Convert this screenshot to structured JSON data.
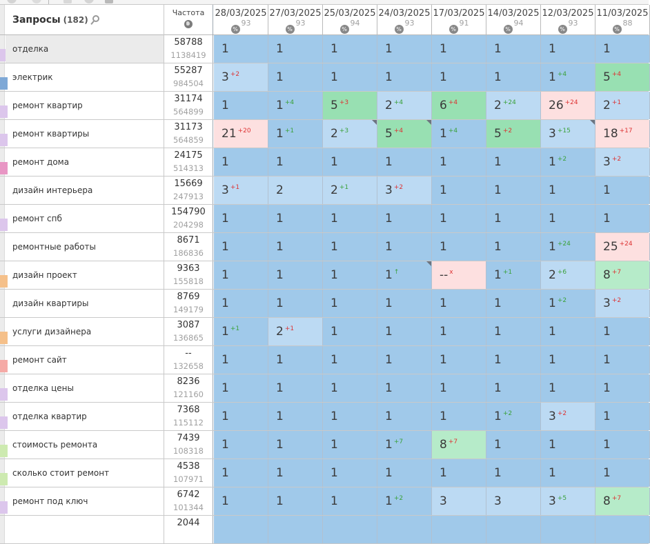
{
  "header": {
    "title": "Запросы",
    "count": "(182)",
    "frequency_label": "Частота",
    "dates": [
      {
        "date": "28/03/2025",
        "visibility": "93"
      },
      {
        "date": "27/03/2025",
        "visibility": "93"
      },
      {
        "date": "25/03/2025",
        "visibility": "94"
      },
      {
        "date": "24/03/2025",
        "visibility": "93"
      },
      {
        "date": "17/03/2025",
        "visibility": "91"
      },
      {
        "date": "14/03/2025",
        "visibility": "94"
      },
      {
        "date": "12/03/2025",
        "visibility": "93"
      },
      {
        "date": "11/03/2025",
        "visibility": "88"
      }
    ]
  },
  "colors": {
    "blue": "#a0c9ea",
    "light": "#bcdaf3",
    "green": "#98e0b2",
    "pink": "#fde0e0",
    "lgreen": "#b6ebc9",
    "swatch_lilac": "#dcc6ec",
    "swatch_blue": "#7ea8d6",
    "swatch_pink": "#e896c4",
    "swatch_orange": "#f5c08a",
    "swatch_coral": "#f5aaa6",
    "swatch_lime": "#cdeab0"
  },
  "rows": [
    {
      "keyword": "отделка",
      "freq": "58788",
      "freq2": "1138419",
      "swatch": "#dcc6ec",
      "alt": true,
      "cells": [
        {
          "v": "1",
          "bg": "blue"
        },
        {
          "v": "1",
          "bg": "blue"
        },
        {
          "v": "1",
          "bg": "blue"
        },
        {
          "v": "1",
          "bg": "blue"
        },
        {
          "v": "1",
          "bg": "blue"
        },
        {
          "v": "1",
          "bg": "blue"
        },
        {
          "v": "1",
          "bg": "blue"
        },
        {
          "v": "1",
          "bg": "blue"
        }
      ]
    },
    {
      "keyword": "электрик",
      "freq": "55287",
      "freq2": "984504",
      "swatch": "#7ea8d6",
      "cells": [
        {
          "v": "3",
          "d": "+2",
          "dir": "dn",
          "bg": "light"
        },
        {
          "v": "1",
          "bg": "blue"
        },
        {
          "v": "1",
          "bg": "blue"
        },
        {
          "v": "1",
          "bg": "blue"
        },
        {
          "v": "1",
          "bg": "blue"
        },
        {
          "v": "1",
          "bg": "blue"
        },
        {
          "v": "1",
          "d": "+4",
          "dir": "up",
          "bg": "blue"
        },
        {
          "v": "5",
          "d": "+4",
          "dir": "dn",
          "bg": "green"
        }
      ]
    },
    {
      "keyword": "ремонт квартир",
      "freq": "31174",
      "freq2": "564899",
      "swatch": "#dcc6ec",
      "cells": [
        {
          "v": "1",
          "bg": "blue"
        },
        {
          "v": "1",
          "d": "+4",
          "dir": "up",
          "bg": "blue"
        },
        {
          "v": "5",
          "d": "+3",
          "dir": "dn",
          "bg": "green"
        },
        {
          "v": "2",
          "d": "+4",
          "dir": "up",
          "bg": "light"
        },
        {
          "v": "6",
          "d": "+4",
          "dir": "dn",
          "bg": "green"
        },
        {
          "v": "2",
          "d": "+24",
          "dir": "up",
          "bg": "light"
        },
        {
          "v": "26",
          "d": "+24",
          "dir": "dn",
          "bg": "pink"
        },
        {
          "v": "2",
          "d": "+1",
          "dir": "dn",
          "bg": "light"
        }
      ]
    },
    {
      "keyword": "ремонт квартиры",
      "freq": "31173",
      "freq2": "564859",
      "swatch": "#dcc6ec",
      "cells": [
        {
          "v": "21",
          "d": "+20",
          "dir": "dn",
          "bg": "pink"
        },
        {
          "v": "1",
          "d": "+1",
          "dir": "up",
          "bg": "blue"
        },
        {
          "v": "2",
          "d": "+3",
          "dir": "up",
          "bg": "light",
          "tri": true
        },
        {
          "v": "5",
          "d": "+4",
          "dir": "dn",
          "bg": "green",
          "tri": true
        },
        {
          "v": "1",
          "d": "+4",
          "dir": "up",
          "bg": "blue"
        },
        {
          "v": "5",
          "d": "+2",
          "dir": "dn",
          "bg": "green"
        },
        {
          "v": "3",
          "d": "+15",
          "dir": "up",
          "bg": "light",
          "tri": true
        },
        {
          "v": "18",
          "d": "+17",
          "dir": "dn",
          "bg": "pink"
        }
      ]
    },
    {
      "keyword": "ремонт дома",
      "freq": "24175",
      "freq2": "514313",
      "swatch": "#e896c4",
      "cells": [
        {
          "v": "1",
          "bg": "blue"
        },
        {
          "v": "1",
          "bg": "blue"
        },
        {
          "v": "1",
          "bg": "blue"
        },
        {
          "v": "1",
          "bg": "blue"
        },
        {
          "v": "1",
          "bg": "blue"
        },
        {
          "v": "1",
          "bg": "blue"
        },
        {
          "v": "1",
          "d": "+2",
          "dir": "up",
          "bg": "blue"
        },
        {
          "v": "3",
          "d": "+2",
          "dir": "dn",
          "bg": "light"
        }
      ]
    },
    {
      "keyword": "дизайн интерьера",
      "freq": "15669",
      "freq2": "247913",
      "swatch": "",
      "cells": [
        {
          "v": "3",
          "d": "+1",
          "dir": "dn",
          "bg": "light"
        },
        {
          "v": "2",
          "bg": "light"
        },
        {
          "v": "2",
          "d": "+1",
          "dir": "up",
          "bg": "light"
        },
        {
          "v": "3",
          "d": "+2",
          "dir": "dn",
          "bg": "light"
        },
        {
          "v": "1",
          "bg": "blue"
        },
        {
          "v": "1",
          "bg": "blue"
        },
        {
          "v": "1",
          "bg": "blue"
        },
        {
          "v": "1",
          "bg": "blue"
        }
      ]
    },
    {
      "keyword": "ремонт спб",
      "freq": "154790",
      "freq2": "204298",
      "swatch": "#dcc6ec",
      "cells": [
        {
          "v": "1",
          "bg": "blue"
        },
        {
          "v": "1",
          "bg": "blue"
        },
        {
          "v": "1",
          "bg": "blue"
        },
        {
          "v": "1",
          "bg": "blue"
        },
        {
          "v": "1",
          "bg": "blue"
        },
        {
          "v": "1",
          "bg": "blue"
        },
        {
          "v": "1",
          "bg": "blue"
        },
        {
          "v": "1",
          "bg": "blue"
        }
      ]
    },
    {
      "keyword": "ремонтные работы",
      "freq": "8671",
      "freq2": "186836",
      "swatch": "",
      "cells": [
        {
          "v": "1",
          "bg": "blue"
        },
        {
          "v": "1",
          "bg": "blue"
        },
        {
          "v": "1",
          "bg": "blue"
        },
        {
          "v": "1",
          "bg": "blue"
        },
        {
          "v": "1",
          "bg": "blue"
        },
        {
          "v": "1",
          "bg": "blue"
        },
        {
          "v": "1",
          "d": "+24",
          "dir": "up",
          "bg": "blue"
        },
        {
          "v": "25",
          "d": "+24",
          "dir": "dn",
          "bg": "pink"
        }
      ]
    },
    {
      "keyword": "дизайн проект",
      "freq": "9363",
      "freq2": "155818",
      "swatch": "#f5c08a",
      "cells": [
        {
          "v": "1",
          "bg": "blue"
        },
        {
          "v": "1",
          "bg": "blue"
        },
        {
          "v": "1",
          "bg": "blue"
        },
        {
          "v": "1",
          "d": "↑",
          "dir": "up",
          "bg": "blue",
          "tri": true
        },
        {
          "v": "--",
          "d": "x",
          "dir": "dn",
          "bg": "pink"
        },
        {
          "v": "1",
          "d": "+1",
          "dir": "up",
          "bg": "blue"
        },
        {
          "v": "2",
          "d": "+6",
          "dir": "up",
          "bg": "light"
        },
        {
          "v": "8",
          "d": "+7",
          "dir": "dn",
          "bg": "lgreen"
        }
      ]
    },
    {
      "keyword": "дизайн квартиры",
      "freq": "8769",
      "freq2": "149179",
      "swatch": "",
      "cells": [
        {
          "v": "1",
          "bg": "blue"
        },
        {
          "v": "1",
          "bg": "blue"
        },
        {
          "v": "1",
          "bg": "blue"
        },
        {
          "v": "1",
          "bg": "blue"
        },
        {
          "v": "1",
          "bg": "blue"
        },
        {
          "v": "1",
          "bg": "blue"
        },
        {
          "v": "1",
          "d": "+2",
          "dir": "up",
          "bg": "blue"
        },
        {
          "v": "3",
          "d": "+2",
          "dir": "dn",
          "bg": "light"
        }
      ]
    },
    {
      "keyword": "услуги дизайнера",
      "freq": "3087",
      "freq2": "136865",
      "swatch": "#f5c08a",
      "cells": [
        {
          "v": "1",
          "d": "+1",
          "dir": "up",
          "bg": "blue"
        },
        {
          "v": "2",
          "d": "+1",
          "dir": "dn",
          "bg": "light"
        },
        {
          "v": "1",
          "bg": "blue"
        },
        {
          "v": "1",
          "bg": "blue"
        },
        {
          "v": "1",
          "bg": "blue"
        },
        {
          "v": "1",
          "bg": "blue"
        },
        {
          "v": "1",
          "bg": "blue"
        },
        {
          "v": "1",
          "bg": "blue"
        }
      ]
    },
    {
      "keyword": "ремонт сайт",
      "freq": "--",
      "freq2": "132658",
      "swatch": "#f5aaa6",
      "cells": [
        {
          "v": "1",
          "bg": "blue"
        },
        {
          "v": "1",
          "bg": "blue"
        },
        {
          "v": "1",
          "bg": "blue"
        },
        {
          "v": "1",
          "bg": "blue"
        },
        {
          "v": "1",
          "bg": "blue"
        },
        {
          "v": "1",
          "bg": "blue"
        },
        {
          "v": "1",
          "bg": "blue"
        },
        {
          "v": "1",
          "bg": "blue"
        }
      ]
    },
    {
      "keyword": "отделка цены",
      "freq": "8236",
      "freq2": "121160",
      "swatch": "#dcc6ec",
      "cells": [
        {
          "v": "1",
          "bg": "blue"
        },
        {
          "v": "1",
          "bg": "blue"
        },
        {
          "v": "1",
          "bg": "blue"
        },
        {
          "v": "1",
          "bg": "blue"
        },
        {
          "v": "1",
          "bg": "blue"
        },
        {
          "v": "1",
          "bg": "blue"
        },
        {
          "v": "1",
          "bg": "blue"
        },
        {
          "v": "1",
          "bg": "blue"
        }
      ]
    },
    {
      "keyword": "отделка квартир",
      "freq": "7368",
      "freq2": "115112",
      "swatch": "#dcc6ec",
      "cells": [
        {
          "v": "1",
          "bg": "blue"
        },
        {
          "v": "1",
          "bg": "blue"
        },
        {
          "v": "1",
          "bg": "blue"
        },
        {
          "v": "1",
          "bg": "blue"
        },
        {
          "v": "1",
          "bg": "blue"
        },
        {
          "v": "1",
          "d": "+2",
          "dir": "up",
          "bg": "blue"
        },
        {
          "v": "3",
          "d": "+2",
          "dir": "dn",
          "bg": "light"
        },
        {
          "v": "1",
          "bg": "blue"
        }
      ]
    },
    {
      "keyword": "стоимость ремонта",
      "freq": "7439",
      "freq2": "108318",
      "swatch": "#cdeab0",
      "cells": [
        {
          "v": "1",
          "bg": "blue"
        },
        {
          "v": "1",
          "bg": "blue"
        },
        {
          "v": "1",
          "bg": "blue"
        },
        {
          "v": "1",
          "d": "+7",
          "dir": "up",
          "bg": "blue"
        },
        {
          "v": "8",
          "d": "+7",
          "dir": "dn",
          "bg": "lgreen"
        },
        {
          "v": "1",
          "bg": "blue"
        },
        {
          "v": "1",
          "bg": "blue"
        },
        {
          "v": "1",
          "bg": "blue"
        }
      ]
    },
    {
      "keyword": "сколько стоит ремонт",
      "freq": "4538",
      "freq2": "107971",
      "swatch": "#cdeab0",
      "cells": [
        {
          "v": "1",
          "bg": "blue"
        },
        {
          "v": "1",
          "bg": "blue"
        },
        {
          "v": "1",
          "bg": "blue"
        },
        {
          "v": "1",
          "bg": "blue"
        },
        {
          "v": "1",
          "bg": "blue"
        },
        {
          "v": "1",
          "bg": "blue"
        },
        {
          "v": "1",
          "bg": "blue"
        },
        {
          "v": "1",
          "bg": "blue"
        }
      ]
    },
    {
      "keyword": "ремонт под ключ",
      "freq": "6742",
      "freq2": "101344",
      "swatch": "#dcc6ec",
      "cells": [
        {
          "v": "1",
          "bg": "blue"
        },
        {
          "v": "1",
          "bg": "blue"
        },
        {
          "v": "1",
          "bg": "blue"
        },
        {
          "v": "1",
          "d": "+2",
          "dir": "up",
          "bg": "blue"
        },
        {
          "v": "3",
          "bg": "light"
        },
        {
          "v": "3",
          "bg": "light"
        },
        {
          "v": "3",
          "d": "+5",
          "dir": "up",
          "bg": "light"
        },
        {
          "v": "8",
          "d": "+7",
          "dir": "dn",
          "bg": "lgreen"
        }
      ]
    },
    {
      "keyword": "",
      "freq": "2044",
      "freq2": "",
      "swatch": "",
      "cells": [
        {
          "v": "",
          "bg": "blue"
        },
        {
          "v": "",
          "bg": "blue"
        },
        {
          "v": "",
          "bg": "blue"
        },
        {
          "v": "",
          "bg": "blue"
        },
        {
          "v": "",
          "bg": "blue"
        },
        {
          "v": "",
          "bg": "blue"
        },
        {
          "v": "",
          "bg": "blue"
        },
        {
          "v": "",
          "bg": "blue"
        }
      ]
    }
  ]
}
